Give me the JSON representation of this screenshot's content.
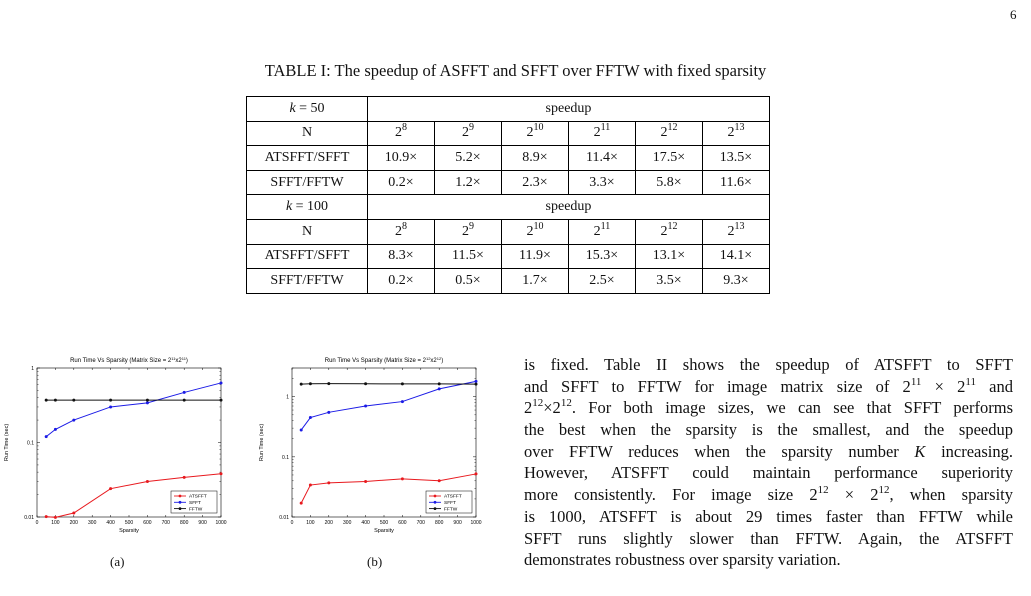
{
  "page_number": "6",
  "table": {
    "caption": "TABLE I: The speedup of ASFFT and SFFT over FFTW with fixed sparsity",
    "blocks": [
      {
        "k_label": "k = 50",
        "speedup_label": "speedup",
        "n_label": "N",
        "exponents": [
          "8",
          "9",
          "10",
          "11",
          "12",
          "13"
        ],
        "rows": [
          {
            "label": "ATSFFT/SFFT",
            "values": [
              "10.9×",
              "5.2×",
              "8.9×",
              "11.4×",
              "17.5×",
              "13.5×"
            ]
          },
          {
            "label": "SFFT/FFTW",
            "values": [
              "0.2×",
              "1.2×",
              "2.3×",
              "3.3×",
              "5.8×",
              "11.6×"
            ]
          }
        ]
      },
      {
        "k_label": "k = 100",
        "speedup_label": "speedup",
        "n_label": "N",
        "exponents": [
          "8",
          "9",
          "10",
          "11",
          "12",
          "13"
        ],
        "rows": [
          {
            "label": "ATSFFT/SFFT",
            "values": [
              "8.3×",
              "11.5×",
              "11.9×",
              "15.3×",
              "13.1×",
              "14.1×"
            ]
          },
          {
            "label": "SFFT/FFTW",
            "values": [
              "0.2×",
              "0.5×",
              "1.7×",
              "2.5×",
              "3.5×",
              "9.3×"
            ]
          }
        ]
      }
    ]
  },
  "paragraph_lines": [
    "is fixed. Table II shows the speedup of ATSFFT to SFFT",
    "and SFFT to FFTW for image matrix size of 2^11 × 2^11 and",
    "2^12×2^12. For both image sizes, we can see that SFFT performs",
    "the best when the sparsity is the smallest, and the speedup",
    "over FFTW reduces when the sparsity number K increasing.",
    "However, ATSFFT could maintain performance superiority",
    "more consistently. For image size 2^12 × 2^12, when sparsity",
    "is 1000, ATSFFT is about 29 times faster than FFTW while",
    "SFFT runs slightly slower than FFTW. Again, the ATSFFT",
    "demonstrates robustness over sparsity variation."
  ],
  "chart_data": [
    {
      "type": "line",
      "sublabel": "(a)",
      "title": "Run Time Vs Sparsity (Matrix Size = 2^11x2^11)",
      "xlabel": "Sparsity",
      "ylabel": "Run Time (sec)",
      "xlim": [
        0,
        1000
      ],
      "ylim": [
        0.01,
        1
      ],
      "yscale": "log",
      "xticks": [
        0,
        100,
        200,
        300,
        400,
        500,
        600,
        700,
        800,
        900,
        1000
      ],
      "yticks": [
        0.01,
        0.1,
        1
      ],
      "ytick_labels": [
        "0.01",
        "0.1",
        "1"
      ],
      "legend_position": "lower-right",
      "series": [
        {
          "name": "ATSFFT",
          "color": "#e8191e",
          "x": [
            50,
            100,
            200,
            400,
            600,
            800,
            1000
          ],
          "y": [
            0.0101,
            0.0099,
            0.0113,
            0.024,
            0.03,
            0.034,
            0.038
          ]
        },
        {
          "name": "SFFT",
          "color": "#1b1be6",
          "x": [
            50,
            100,
            200,
            400,
            600,
            800,
            1000
          ],
          "y": [
            0.12,
            0.15,
            0.2,
            0.3,
            0.34,
            0.47,
            0.63
          ]
        },
        {
          "name": "FFTW",
          "color": "#111111",
          "x": [
            50,
            100,
            200,
            400,
            600,
            800,
            1000
          ],
          "y": [
            0.37,
            0.37,
            0.37,
            0.37,
            0.37,
            0.37,
            0.37
          ]
        }
      ]
    },
    {
      "type": "line",
      "sublabel": "(b)",
      "title": "Run Time Vs Sparsity (Matrix Size = 2^12x2^12)",
      "xlabel": "Sparsity",
      "ylabel": "Run Time (sec)",
      "xlim": [
        0,
        1000
      ],
      "ylim": [
        0.01,
        3
      ],
      "yscale": "log",
      "xticks": [
        0,
        100,
        200,
        300,
        400,
        500,
        600,
        700,
        800,
        900,
        1000
      ],
      "yticks": [
        0.01,
        0.1,
        1
      ],
      "ytick_labels": [
        "0.01",
        "0.1",
        "1"
      ],
      "legend_position": "lower-right",
      "series": [
        {
          "name": "ATSFFT",
          "color": "#e8191e",
          "x": [
            50,
            100,
            200,
            400,
            600,
            800,
            1000
          ],
          "y": [
            0.017,
            0.034,
            0.037,
            0.039,
            0.043,
            0.04,
            0.052
          ]
        },
        {
          "name": "SFFT",
          "color": "#1b1be6",
          "x": [
            50,
            100,
            200,
            400,
            600,
            800,
            1000
          ],
          "y": [
            0.28,
            0.45,
            0.55,
            0.7,
            0.83,
            1.35,
            1.8
          ]
        },
        {
          "name": "FFTW",
          "color": "#111111",
          "x": [
            50,
            100,
            200,
            400,
            600,
            800,
            1000
          ],
          "y": [
            1.62,
            1.64,
            1.65,
            1.64,
            1.63,
            1.63,
            1.62
          ]
        }
      ]
    }
  ]
}
